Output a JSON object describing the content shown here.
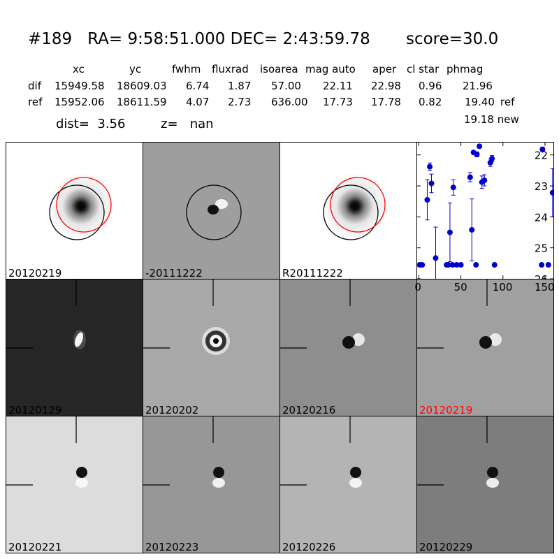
{
  "header": {
    "title": "#189   RA= 9:58:51.000 DEC= 2:43:59.78       score=30.0",
    "columns": [
      "xc",
      "yc",
      "fwhm",
      "fluxrad",
      "isoarea",
      "mag auto",
      "aper",
      "cl star",
      "phmag"
    ],
    "rows": [
      {
        "label": "dif",
        "values": [
          "15949.58",
          "18609.03",
          "6.74",
          "1.87",
          "57.00",
          "22.11",
          "22.98",
          "0.96",
          "21.96"
        ],
        "extra": ""
      },
      {
        "label": "ref",
        "values": [
          "15952.06",
          "18611.59",
          "4.07",
          "2.73",
          "636.00",
          "17.73",
          "17.78",
          "0.82",
          "19.40"
        ],
        "extra": "ref"
      }
    ],
    "new_line": "19.18 new",
    "dist": "dist=  3.56",
    "z": "z=   nan"
  },
  "panels": [
    {
      "label": "20120219",
      "bg": "#ffffff",
      "kind": "star",
      "label_color": "#000000"
    },
    {
      "label": "-20111222",
      "bg": "#9e9e9e",
      "kind": "dipole-h",
      "label_color": "#000000"
    },
    {
      "label": "R20111222",
      "bg": "#ffffff",
      "kind": "star",
      "label_color": "#000000"
    },
    {
      "label": "20120129",
      "bg": "#262626",
      "kind": "bright-blob",
      "label_color": "#000000"
    },
    {
      "label": "20120202",
      "bg": "#a8a8a8",
      "kind": "ring",
      "label_color": "#000000"
    },
    {
      "label": "20120216",
      "bg": "#8e8e8e",
      "kind": "dipole-h",
      "label_color": "#000000"
    },
    {
      "label": "20120219",
      "bg": "#a0a0a0",
      "kind": "dipole-h",
      "label_color": "#ff0000"
    },
    {
      "label": "20120221",
      "bg": "#dcdcdc",
      "kind": "dipole-v",
      "label_color": "#000000"
    },
    {
      "label": "20120223",
      "bg": "#979797",
      "kind": "dipole-v",
      "label_color": "#000000"
    },
    {
      "label": "20120226",
      "bg": "#b4b4b4",
      "kind": "dipole-v",
      "label_color": "#000000"
    },
    {
      "label": "20120229",
      "bg": "#7d7d7d",
      "kind": "dipole-v",
      "label_color": "#000000"
    }
  ],
  "chart_data": {
    "type": "scatter",
    "xlim": [
      -2,
      160
    ],
    "ylim": [
      26,
      21.6
    ],
    "xticks": [
      0,
      50,
      100,
      150
    ],
    "yticks": [
      22,
      23,
      24,
      25,
      26
    ],
    "color": "#0000cc",
    "points": [
      {
        "x": 1,
        "y": 25.55,
        "err": 0
      },
      {
        "x": 4,
        "y": 25.55,
        "err": 0
      },
      {
        "x": 10,
        "y": 23.45,
        "err": 0.65
      },
      {
        "x": 13,
        "y": 22.38,
        "err": 0.12
      },
      {
        "x": 15,
        "y": 22.92,
        "err": 0.3
      },
      {
        "x": 20,
        "y": 25.33,
        "err": 1.0
      },
      {
        "x": 33,
        "y": 25.55,
        "err": 0
      },
      {
        "x": 35,
        "y": 25.55,
        "err": 0
      },
      {
        "x": 37,
        "y": 24.5,
        "err": 0.95
      },
      {
        "x": 40,
        "y": 25.55,
        "err": 0
      },
      {
        "x": 41,
        "y": 23.05,
        "err": 0.25
      },
      {
        "x": 45,
        "y": 25.55,
        "err": 0
      },
      {
        "x": 50,
        "y": 25.55,
        "err": 0
      },
      {
        "x": 61,
        "y": 22.72,
        "err": 0.15
      },
      {
        "x": 63,
        "y": 24.42,
        "err": 1.0
      },
      {
        "x": 65,
        "y": 21.92,
        "err": 0.05
      },
      {
        "x": 68,
        "y": 25.55,
        "err": 0
      },
      {
        "x": 69,
        "y": 21.98,
        "err": 0.08
      },
      {
        "x": 72,
        "y": 21.72,
        "err": 0.06
      },
      {
        "x": 75,
        "y": 22.88,
        "err": 0.2
      },
      {
        "x": 78,
        "y": 22.82,
        "err": 0.18
      },
      {
        "x": 85,
        "y": 22.25,
        "err": 0.12
      },
      {
        "x": 87,
        "y": 22.12,
        "err": 0.1
      },
      {
        "x": 90,
        "y": 25.55,
        "err": 0
      },
      {
        "x": 146,
        "y": 25.55,
        "err": 0
      },
      {
        "x": 147,
        "y": 21.82,
        "err": 0.07
      },
      {
        "x": 154,
        "y": 25.55,
        "err": 0
      },
      {
        "x": 159,
        "y": 23.22,
        "err": 0.78
      }
    ]
  }
}
